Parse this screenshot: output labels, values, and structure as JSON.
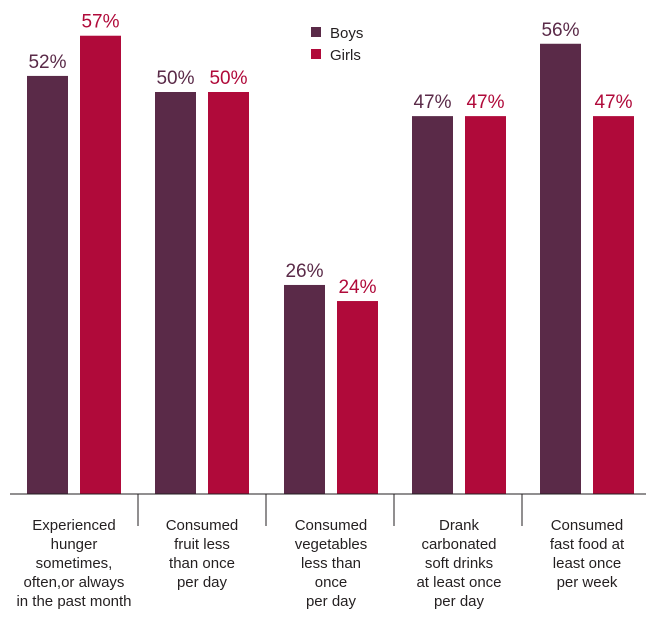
{
  "chart_data": {
    "type": "bar",
    "categories": [
      "Experienced hunger sometimes, often,or always in the past month",
      "Consumed fruit less than once per day",
      "Consumed vegetables less than once per day",
      "Drank carbonated soft drinks at least once per day",
      "Consumed fast food at least once per week"
    ],
    "category_lines": [
      [
        "Experienced",
        "hunger",
        "sometimes,",
        "often,or always",
        "in the past month"
      ],
      [
        "Consumed",
        "fruit less",
        "than once",
        "per day"
      ],
      [
        "Consumed",
        "vegetables",
        "less than",
        "once",
        "per day"
      ],
      [
        "Drank",
        "carbonated",
        "soft drinks",
        "at least once",
        "per day"
      ],
      [
        "Consumed",
        "fast food at",
        "least once",
        "per week"
      ]
    ],
    "series": [
      {
        "name": "Boys",
        "color": "#5a2a48",
        "values": [
          52,
          50,
          26,
          47,
          56
        ],
        "labels": [
          "52%",
          "50%",
          "26%",
          "47%",
          "56%"
        ]
      },
      {
        "name": "Girls",
        "color": "#b00a3a",
        "values": [
          57,
          50,
          24,
          47,
          47
        ],
        "labels": [
          "57%",
          "50%",
          "24%",
          "47%",
          "47%"
        ]
      }
    ],
    "ylim": [
      0,
      60
    ],
    "grid": false,
    "legend": "top-center"
  }
}
